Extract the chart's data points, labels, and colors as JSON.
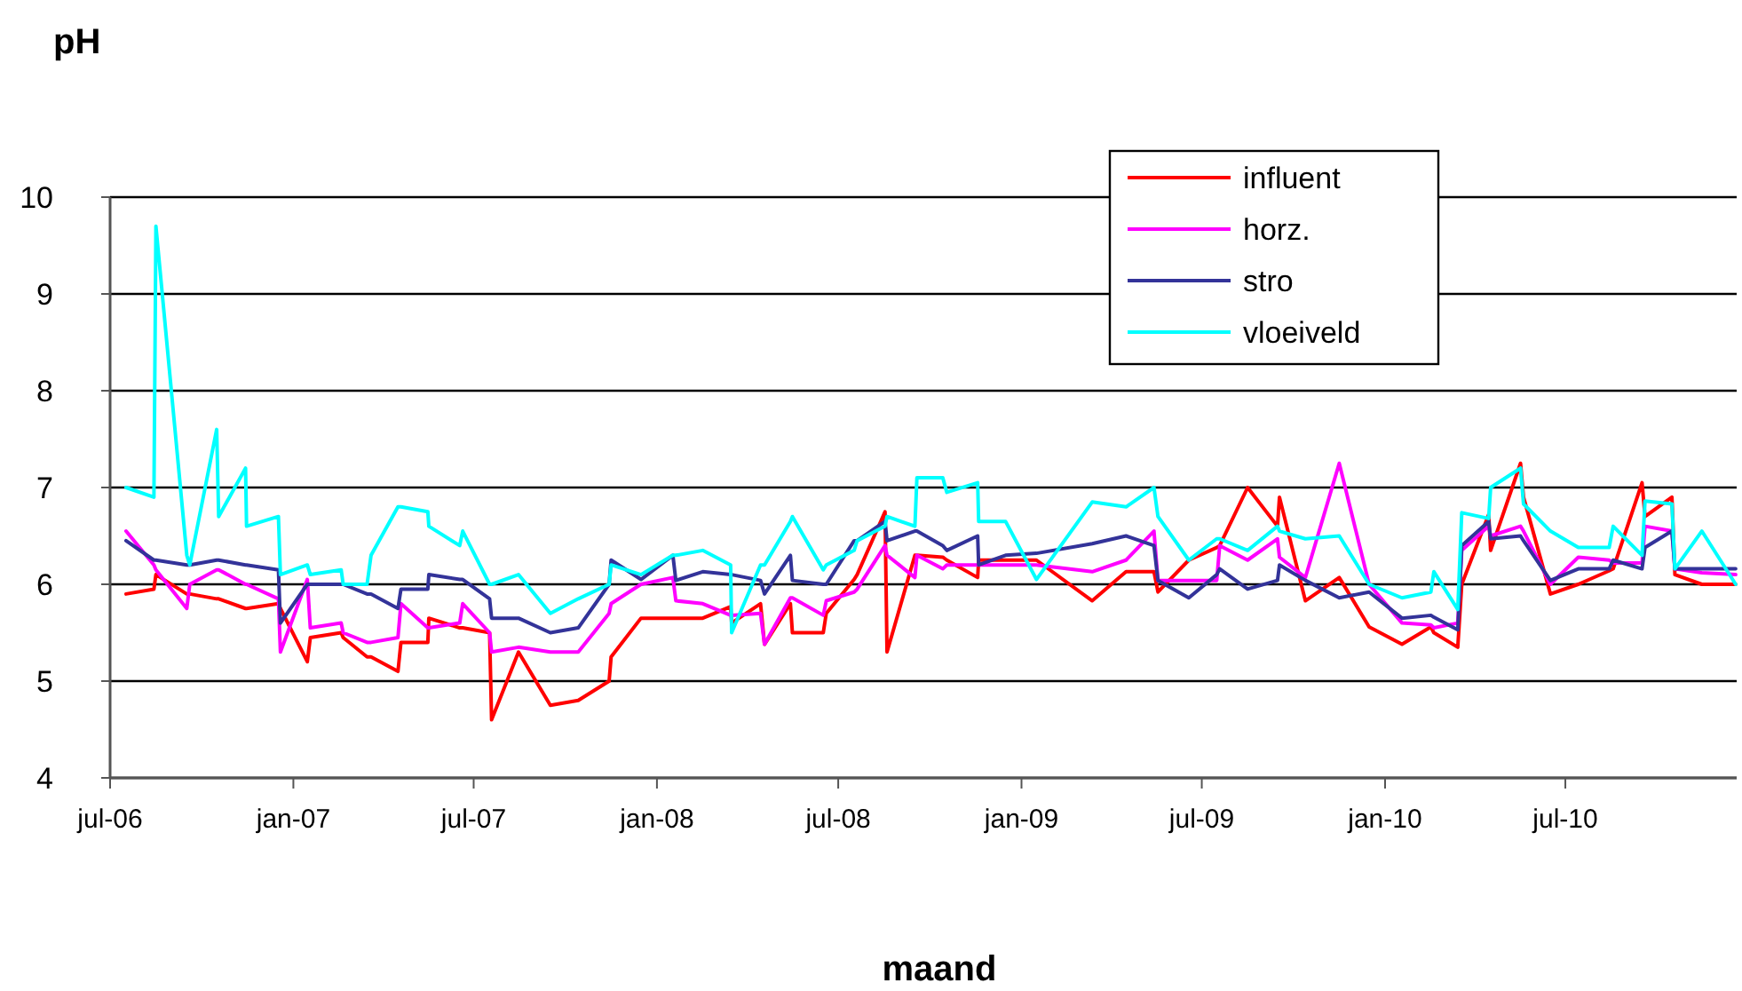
{
  "chart_data": {
    "type": "line",
    "ylabel": "pH",
    "xlabel": "maand",
    "xlim": [
      "2006-07-01",
      "2010-12-20"
    ],
    "ylim": [
      4,
      10
    ],
    "yticks": [
      4,
      5,
      6,
      7,
      8,
      9,
      10
    ],
    "xticks": [
      {
        "value": "2006-07-01",
        "label": "jul-06"
      },
      {
        "value": "2007-01-01",
        "label": "jan-07"
      },
      {
        "value": "2007-07-01",
        "label": "jul-07"
      },
      {
        "value": "2008-01-01",
        "label": "jan-08"
      },
      {
        "value": "2008-07-01",
        "label": "jul-08"
      },
      {
        "value": "2009-01-01",
        "label": "jan-09"
      },
      {
        "value": "2009-07-01",
        "label": "jul-09"
      },
      {
        "value": "2010-01-01",
        "label": "jan-10"
      },
      {
        "value": "2010-07-01",
        "label": "jul-10"
      }
    ],
    "grid": "y",
    "legend": "top right",
    "marker": "none",
    "line_style": "solid",
    "x": [
      "2006-07-17",
      "2006-08-14",
      "2006-08-16",
      "2006-09-16",
      "2006-09-19",
      "2006-10-16",
      "2006-10-18",
      "2006-11-14",
      "2006-11-15",
      "2006-12-17",
      "2006-12-19",
      "2007-01-15",
      "2007-01-18",
      "2007-02-18",
      "2007-02-20",
      "2007-03-16",
      "2007-03-20",
      "2007-04-16",
      "2007-04-19",
      "2007-05-16",
      "2007-05-17",
      "2007-06-17",
      "2007-06-20",
      "2007-07-17",
      "2007-07-19",
      "2007-08-15",
      "2007-09-16",
      "2007-10-14",
      "2007-11-14",
      "2007-11-16",
      "2007-12-16",
      "2008-01-17",
      "2008-01-20",
      "2008-02-16",
      "2008-03-15",
      "2008-03-16",
      "2008-04-14",
      "2008-04-18",
      "2008-05-14",
      "2008-05-16",
      "2008-06-16",
      "2008-06-19",
      "2008-07-17",
      "2008-07-20",
      "2008-08-17",
      "2008-08-19",
      "2008-09-16",
      "2008-09-18",
      "2008-10-14",
      "2008-10-18",
      "2008-11-18",
      "2008-11-19",
      "2008-12-16",
      "2009-01-16",
      "2009-03-13",
      "2009-04-16",
      "2009-05-14",
      "2009-05-18",
      "2009-06-18",
      "2009-07-16",
      "2009-07-19",
      "2009-08-16",
      "2009-09-15",
      "2009-09-17",
      "2009-10-13",
      "2009-11-16",
      "2009-12-16",
      "2010-01-18",
      "2010-02-16",
      "2010-02-19",
      "2010-03-15",
      "2010-03-19",
      "2010-04-15",
      "2010-04-17",
      "2010-05-17",
      "2010-05-20",
      "2010-06-16",
      "2010-07-14",
      "2010-08-14",
      "2010-08-18",
      "2010-09-16",
      "2010-09-19",
      "2010-10-16",
      "2010-10-19",
      "2010-11-15",
      "2010-12-19"
    ],
    "series": [
      {
        "name": "influent",
        "color": "#ff0000",
        "values": [
          5.9,
          5.95,
          6.1,
          5.9,
          5.9,
          5.85,
          5.85,
          5.75,
          5.75,
          5.8,
          5.75,
          5.2,
          5.45,
          5.5,
          5.45,
          5.25,
          5.25,
          5.1,
          5.4,
          5.4,
          5.65,
          5.55,
          5.55,
          5.5,
          4.6,
          5.3,
          4.75,
          4.8,
          5.0,
          5.25,
          5.65,
          5.65,
          5.65,
          5.65,
          5.77,
          5.6,
          5.8,
          5.38,
          5.8,
          5.5,
          5.5,
          5.7,
          6.05,
          6.1,
          6.75,
          5.3,
          6.3,
          6.3,
          6.28,
          6.25,
          6.07,
          6.25,
          6.25,
          6.25,
          5.83,
          6.13,
          6.13,
          5.92,
          6.25,
          6.38,
          6.4,
          7.0,
          6.6,
          6.9,
          5.83,
          6.07,
          5.56,
          5.38,
          5.56,
          5.5,
          5.35,
          6.0,
          6.72,
          6.35,
          7.25,
          6.9,
          5.9,
          6.0,
          6.14,
          6.16,
          7.05,
          6.7,
          6.9,
          6.1,
          6.0,
          6.0
        ]
      },
      {
        "name": "horz.",
        "color": "#ff00ff",
        "values": [
          6.55,
          6.2,
          6.15,
          5.75,
          6.0,
          6.15,
          6.15,
          6.0,
          6.0,
          5.85,
          5.3,
          6.05,
          5.55,
          5.6,
          5.5,
          5.4,
          5.4,
          5.45,
          5.8,
          5.55,
          5.55,
          5.6,
          5.8,
          5.5,
          5.3,
          5.35,
          5.3,
          5.3,
          5.7,
          5.8,
          6.0,
          6.07,
          5.83,
          5.8,
          5.68,
          5.68,
          5.7,
          5.38,
          5.86,
          5.86,
          5.68,
          5.83,
          5.92,
          5.95,
          6.4,
          6.3,
          6.07,
          6.3,
          6.16,
          6.2,
          6.2,
          6.2,
          6.2,
          6.2,
          6.13,
          6.25,
          6.55,
          6.04,
          6.04,
          6.04,
          6.4,
          6.25,
          6.47,
          6.28,
          6.07,
          7.25,
          6.0,
          5.6,
          5.58,
          5.55,
          5.6,
          6.35,
          6.6,
          6.5,
          6.6,
          6.55,
          6.0,
          6.28,
          6.25,
          6.22,
          6.22,
          6.6,
          6.55,
          6.16,
          6.12,
          6.1
        ]
      },
      {
        "name": "stro",
        "color": "#333399",
        "values": [
          6.45,
          6.25,
          6.25,
          6.2,
          6.2,
          6.25,
          6.25,
          6.2,
          6.2,
          6.15,
          5.6,
          6.0,
          6.0,
          6.0,
          6.0,
          5.9,
          5.9,
          5.75,
          5.95,
          5.95,
          6.1,
          6.05,
          6.05,
          5.85,
          5.65,
          5.65,
          5.5,
          5.55,
          6.0,
          6.25,
          6.05,
          6.3,
          6.04,
          6.13,
          6.1,
          6.1,
          6.04,
          5.9,
          6.3,
          6.04,
          6.0,
          6.0,
          6.45,
          6.45,
          6.65,
          6.45,
          6.55,
          6.55,
          6.4,
          6.35,
          6.5,
          6.2,
          6.3,
          6.32,
          6.42,
          6.5,
          6.4,
          6.04,
          5.86,
          6.1,
          6.16,
          5.95,
          6.04,
          6.2,
          6.04,
          5.86,
          5.92,
          5.65,
          5.68,
          5.66,
          5.53,
          6.4,
          6.65,
          6.47,
          6.5,
          6.45,
          6.04,
          6.16,
          6.16,
          6.25,
          6.16,
          6.38,
          6.55,
          6.16,
          6.16,
          6.16
        ]
      },
      {
        "name": "vloeiveld",
        "color": "#00ffff",
        "values": [
          7.0,
          6.9,
          9.7,
          6.3,
          6.2,
          7.6,
          6.7,
          7.2,
          6.6,
          6.7,
          6.1,
          6.2,
          6.1,
          6.15,
          6.0,
          6.0,
          6.3,
          6.8,
          6.8,
          6.75,
          6.6,
          6.4,
          6.55,
          6.0,
          6.0,
          6.1,
          5.7,
          5.85,
          6.0,
          6.2,
          6.1,
          6.3,
          6.3,
          6.35,
          6.2,
          5.5,
          6.2,
          6.2,
          6.65,
          6.7,
          6.15,
          6.2,
          6.35,
          6.45,
          6.6,
          6.7,
          6.6,
          7.1,
          7.1,
          6.95,
          7.05,
          6.65,
          6.65,
          6.05,
          6.85,
          6.8,
          7.0,
          6.7,
          6.25,
          6.47,
          6.47,
          6.35,
          6.6,
          6.55,
          6.47,
          6.5,
          6.0,
          5.86,
          5.92,
          6.13,
          5.74,
          6.74,
          6.68,
          7.0,
          7.2,
          6.83,
          6.55,
          6.38,
          6.38,
          6.6,
          6.3,
          6.86,
          6.83,
          6.16,
          6.55,
          6.0
        ]
      }
    ]
  }
}
